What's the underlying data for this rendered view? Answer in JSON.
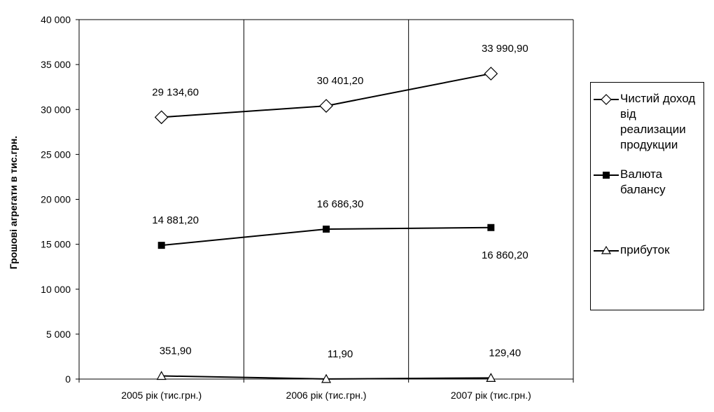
{
  "chart_data": {
    "type": "line",
    "categories": [
      "2005 рік (тис.грн.)",
      "2006 рік (тис.грн.)",
      "2007 рік (тис.грн.)"
    ],
    "ylabel": "Грошові агрегати в тис.грн.",
    "ylim": [
      0,
      40000
    ],
    "yticks": [
      {
        "value": 0,
        "label": "0"
      },
      {
        "value": 5000,
        "label": "5 000"
      },
      {
        "value": 10000,
        "label": "10 000"
      },
      {
        "value": 15000,
        "label": "15 000"
      },
      {
        "value": 20000,
        "label": "20 000"
      },
      {
        "value": 25000,
        "label": "25 000"
      },
      {
        "value": 30000,
        "label": "30 000"
      },
      {
        "value": 35000,
        "label": "35 000"
      },
      {
        "value": 40000,
        "label": "40 000"
      }
    ],
    "grid": "vertical",
    "legend_position": "right",
    "series": [
      {
        "name": "Чистий доход від реализации продукции",
        "marker": "diamond",
        "values": [
          29134.6,
          30401.2,
          33990.9
        ],
        "labels": [
          "29 134,60",
          "30 401,20",
          "33 990,90"
        ],
        "label_placement": [
          "above",
          "above",
          "above"
        ]
      },
      {
        "name": "Валюта балансу",
        "marker": "square",
        "values": [
          14881.2,
          16686.3,
          16860.2
        ],
        "labels": [
          "14 881,20",
          "16 686,30",
          "16 860,20"
        ],
        "label_placement": [
          "above",
          "above",
          "below"
        ]
      },
      {
        "name": "прибуток",
        "marker": "triangle",
        "values": [
          351.9,
          11.9,
          129.4
        ],
        "labels": [
          "351,90",
          "11,90",
          "129,40"
        ],
        "label_placement": [
          "above",
          "above",
          "above"
        ]
      }
    ]
  }
}
